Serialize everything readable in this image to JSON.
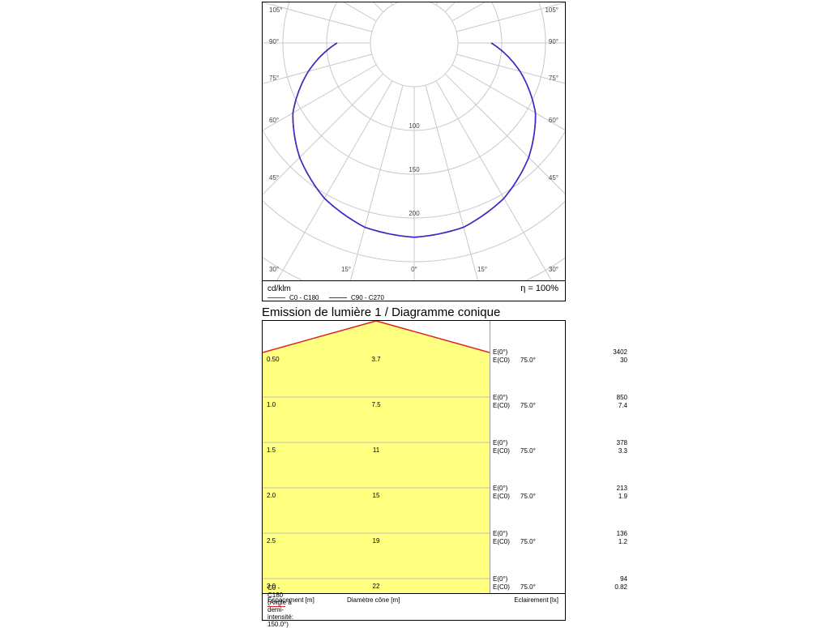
{
  "polar": {
    "angle_labels_left": [
      "105°",
      "90°",
      "75°",
      "60°",
      "45°",
      "30°"
    ],
    "angle_labels_right": [
      "105°",
      "90°",
      "75°",
      "60°",
      "45°",
      "30°"
    ],
    "bottom_labels": [
      "30°",
      "15°",
      "0°",
      "15°",
      "30°"
    ],
    "radial_labels": [
      "100",
      "150",
      "200"
    ],
    "unit": "cd/klm",
    "efficiency": "η = 100%",
    "legend": [
      {
        "name": "C0 - C180",
        "color": "#e02020"
      },
      {
        "name": "C90 - C270",
        "color": "#3a2bd0"
      }
    ]
  },
  "chart_data": [
    {
      "type": "line",
      "subtype": "polar",
      "radial_ticks": [
        100,
        150,
        200
      ],
      "series": [
        {
          "name": "C0 - C180",
          "color": "#e02020",
          "angles": [
            0,
            15,
            30,
            45,
            60,
            75,
            90
          ],
          "values": [
            222,
            218,
            205,
            185,
            160,
            125,
            88
          ]
        },
        {
          "name": "C90 - C270",
          "color": "#3a2bd0",
          "angles": [
            0,
            15,
            30,
            45,
            60,
            75,
            90
          ],
          "values": [
            222,
            218,
            205,
            185,
            160,
            125,
            88
          ]
        }
      ]
    },
    {
      "type": "table",
      "rows": [
        {
          "spacing": "0.50",
          "diameter": "3.7",
          "e0_label": "E(0°)",
          "e0": "3402",
          "ec0_label": "E(C0)",
          "angle": "75.0°",
          "ec0": "30"
        },
        {
          "spacing": "1.0",
          "diameter": "7.5",
          "e0_label": "E(0°)",
          "e0": "850",
          "ec0_label": "E(C0)",
          "angle": "75.0°",
          "ec0": "7.4"
        },
        {
          "spacing": "1.5",
          "diameter": "11",
          "e0_label": "E(0°)",
          "e0": "378",
          "ec0_label": "E(C0)",
          "angle": "75.0°",
          "ec0": "3.3"
        },
        {
          "spacing": "2.0",
          "diameter": "15",
          "e0_label": "E(0°)",
          "e0": "213",
          "ec0_label": "E(C0)",
          "angle": "75.0°",
          "ec0": "1.9"
        },
        {
          "spacing": "2.5",
          "diameter": "19",
          "e0_label": "E(0°)",
          "e0": "136",
          "ec0_label": "E(C0)",
          "angle": "75.0°",
          "ec0": "1.2"
        },
        {
          "spacing": "3.0",
          "diameter": "22",
          "e0_label": "E(0°)",
          "e0": "94",
          "ec0_label": "E(C0)",
          "angle": "75.0°",
          "ec0": "0.82"
        }
      ]
    }
  ],
  "cone": {
    "title": "Emission de lumière 1 / Diagramme conique",
    "col_spacing": "Espacement [m]",
    "col_diameter": "Diamètre cône [m]",
    "col_illuminance": "Eclairement [lx]",
    "legend": "C0 - C180 (Angle à demi-intensité: 150.0°)",
    "fill_color": "#ffff80",
    "line_color": "#e02020"
  }
}
